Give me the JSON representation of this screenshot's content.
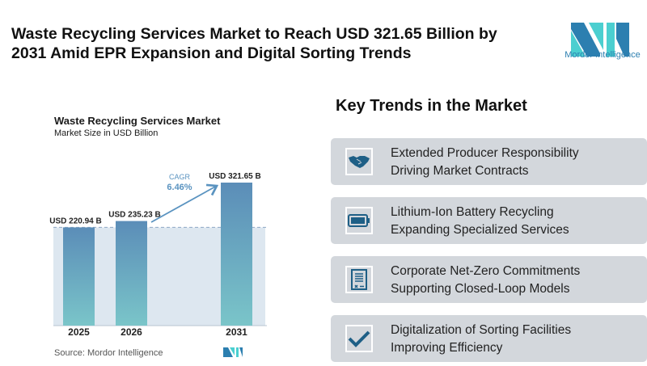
{
  "title": "Waste Recycling Services Market to Reach USD 321.65 Billion by 2031 Amid EPR Expansion and Digital Sorting Trends",
  "logo": {
    "text": "Mordor Intelligence",
    "colors": [
      "#2c7fb0",
      "#4bcfd0"
    ]
  },
  "chart_data": {
    "type": "bar",
    "title": "Waste Recycling Services Market",
    "subtitle": "Market Size in USD Billion",
    "categories": [
      "2025",
      "2026",
      "2031"
    ],
    "values": [
      220.94,
      235.23,
      321.65
    ],
    "data_labels": [
      "USD 220.94 B",
      "USD 235.23 B",
      "USD 321.65 B"
    ],
    "annotation": {
      "label": "CAGR",
      "value": "6.46%"
    },
    "ylim": [
      0,
      321.65
    ],
    "grid": false,
    "colors": {
      "bar_top": "#5b8db8",
      "bar_bottom": "#7ac5c9",
      "annotation": "#5a93c0"
    },
    "source": "Source:  Mordor Intelligence"
  },
  "trends": {
    "heading": "Key Trends in the Market",
    "items": [
      {
        "icon": "handshake-icon",
        "line1": "Extended Producer Responsibility",
        "line2": "Driving Market Contracts"
      },
      {
        "icon": "battery-icon",
        "line1": "Lithium-Ion Battery Recycling",
        "line2": "Expanding Specialized Services"
      },
      {
        "icon": "document-icon",
        "line1": "Corporate Net-Zero Commitments",
        "line2": "Supporting Closed-Loop Models"
      },
      {
        "icon": "checkmark-icon",
        "line1": "Digitalization of Sorting Facilities",
        "line2": "Improving Efficiency"
      }
    ]
  }
}
